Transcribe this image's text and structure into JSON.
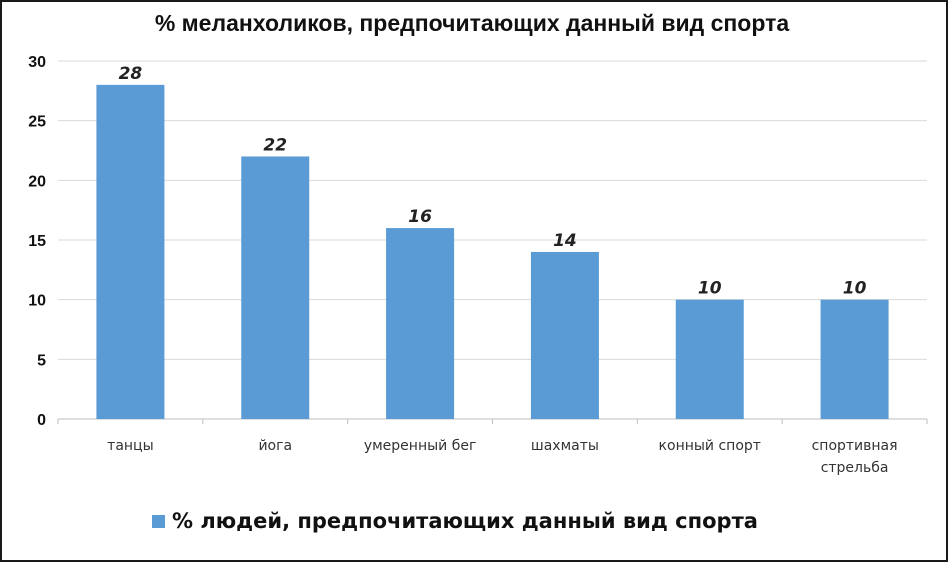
{
  "chart_data": {
    "type": "bar",
    "title": "% меланхоликов, предпочитающих данный вид спорта",
    "categories": [
      "танцы",
      "йога",
      "умеренный бег",
      "шахматы",
      "конный спорт",
      "спортивная стрельба"
    ],
    "series": [
      {
        "name": "% людей, предпочитающих данный вид спорта",
        "values": [
          28,
          22,
          16,
          14,
          10,
          10
        ]
      }
    ],
    "data_labels": [
      "28",
      "22",
      "16",
      "14",
      "10",
      "10"
    ],
    "y_ticks": [
      "0",
      "5",
      "10",
      "15",
      "20",
      "25",
      "30"
    ],
    "ylim": [
      0,
      30
    ],
    "grid": true,
    "legend": "bottom",
    "colors": {
      "bar": "#5b9bd5"
    }
  }
}
